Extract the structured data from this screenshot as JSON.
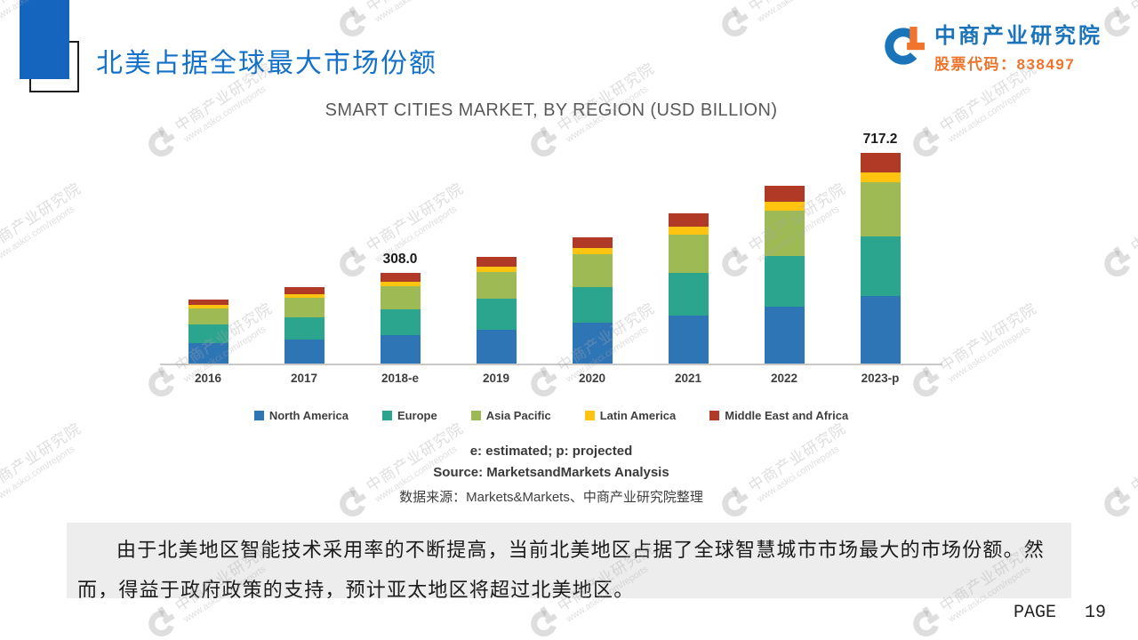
{
  "header": {
    "title": "北美占据全球最大市场份额",
    "company": "中商产业研究院",
    "stock_code": "股票代码：838497",
    "accent_blue": "#1565BF",
    "brand_blue": "#1B74BA",
    "brand_orange": "#F0742B"
  },
  "watermark": {
    "line1": "中商产业研究院",
    "line2": "www.askci.com/reports"
  },
  "chart_data": {
    "type": "bar",
    "stacked": true,
    "title": "SMART CITIES MARKET, BY REGION (USD BILLION)",
    "categories": [
      "2016",
      "2017",
      "2018-e",
      "2019",
      "2020",
      "2021",
      "2022",
      "2023-p"
    ],
    "series": [
      {
        "name": "North America",
        "color": "#2E75B6",
        "values": [
          70.4,
          83.2,
          98.6,
          116.8,
          138.2,
          163.8,
          193.6,
          229.5
        ]
      },
      {
        "name": "Europe",
        "color": "#2BA58E",
        "values": [
          62.7,
          74.1,
          87.8,
          104.0,
          123.1,
          145.9,
          172.4,
          204.4
        ]
      },
      {
        "name": "Asia Pacific",
        "color": "#9DBA55",
        "values": [
          56.1,
          66.3,
          78.5,
          93.1,
          110.2,
          130.6,
          154.3,
          182.9
        ]
      },
      {
        "name": "Latin America",
        "color": "#FFC410",
        "values": [
          11.0,
          13.0,
          15.4,
          18.3,
          21.6,
          25.6,
          30.3,
          35.9
        ]
      },
      {
        "name": "Middle East and Africa",
        "color": "#B13A27",
        "values": [
          19.8,
          23.4,
          27.7,
          32.9,
          38.9,
          46.1,
          54.5,
          64.5
        ]
      }
    ],
    "totals": [
      220,
      260,
      308.0,
      365,
      432,
      512,
      605,
      717.2
    ],
    "data_labels": {
      "2018-e": "308.0",
      "2023-p": "717.2"
    },
    "ylim": [
      0,
      760
    ],
    "legend_position": "bottom",
    "footnote": "e: estimated; p: projected",
    "source": "Source: MarketsandMarkets Analysis",
    "source_cn": "数据来源：Markets&Markets、中商产业研究院整理"
  },
  "analysis": {
    "text": "由于北美地区智能技术采用率的不断提高，当前北美地区占据了全球智慧城市市场最大的市场份额。然而，得益于政府政策的支持，预计亚太地区将超过北美地区。"
  },
  "footer": {
    "label": "PAGE",
    "page": "19"
  }
}
